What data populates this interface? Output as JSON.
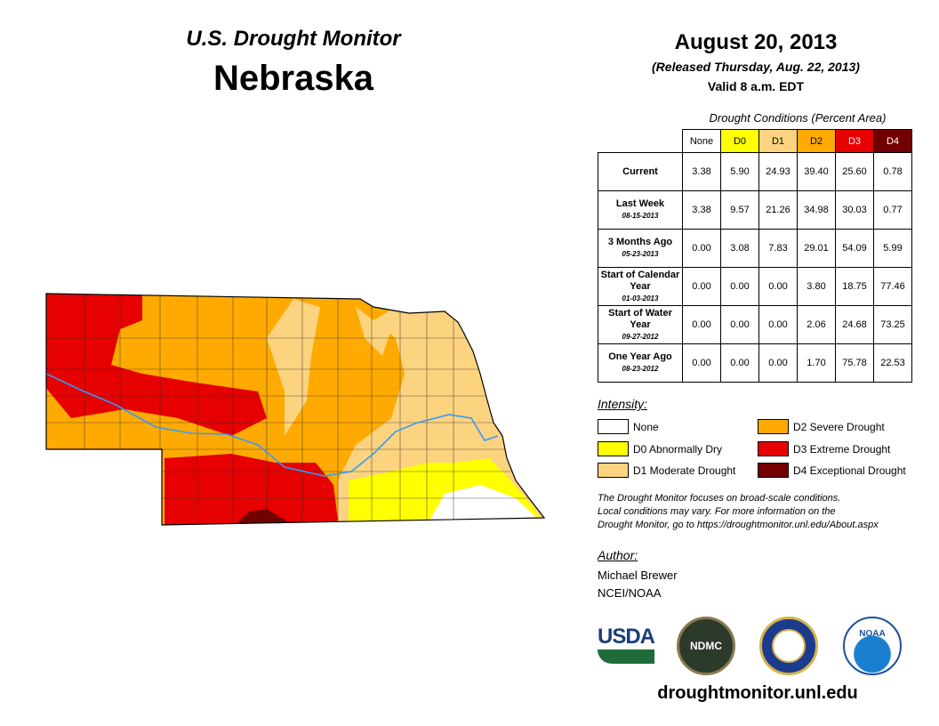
{
  "header": {
    "title": "U.S. Drought Monitor",
    "state": "Nebraska",
    "date": "August 20, 2013",
    "released": "(Released Thursday, Aug. 22, 2013)",
    "valid": "Valid 8 a.m. EDT"
  },
  "table": {
    "caption": "Drought Conditions (Percent Area)",
    "columns": [
      "None",
      "D0",
      "D1",
      "D2",
      "D3",
      "D4"
    ],
    "column_colors": [
      "#ffffff",
      "#ffff00",
      "#fcd37f",
      "#ffaa00",
      "#e60000",
      "#730000"
    ],
    "rows": [
      {
        "label": "Current",
        "date": "",
        "values": [
          "3.38",
          "5.90",
          "24.93",
          "39.40",
          "25.60",
          "0.78"
        ]
      },
      {
        "label": "Last Week",
        "date": "08-15-2013",
        "values": [
          "3.38",
          "9.57",
          "21.26",
          "34.98",
          "30.03",
          "0.77"
        ]
      },
      {
        "label": "3 Months Ago",
        "date": "05-23-2013",
        "values": [
          "0.00",
          "3.08",
          "7.83",
          "29.01",
          "54.09",
          "5.99"
        ]
      },
      {
        "label": "Start of Calendar Year",
        "date": "01-03-2013",
        "values": [
          "0.00",
          "0.00",
          "0.00",
          "3.80",
          "18.75",
          "77.46"
        ]
      },
      {
        "label": "Start of Water Year",
        "date": "09-27-2012",
        "values": [
          "0.00",
          "0.00",
          "0.00",
          "2.06",
          "24.68",
          "73.25"
        ]
      },
      {
        "label": "One Year Ago",
        "date": "08-23-2012",
        "values": [
          "0.00",
          "0.00",
          "0.00",
          "1.70",
          "75.78",
          "22.53"
        ]
      }
    ]
  },
  "legend": {
    "title": "Intensity:",
    "items": [
      {
        "label": "None",
        "color": "#ffffff"
      },
      {
        "label": "D0 Abnormally Dry",
        "color": "#ffff00"
      },
      {
        "label": "D1 Moderate Drought",
        "color": "#fcd37f"
      },
      {
        "label": "D2 Severe Drought",
        "color": "#ffaa00"
      },
      {
        "label": "D3 Extreme Drought",
        "color": "#e60000"
      },
      {
        "label": "D4 Exceptional Drought",
        "color": "#730000"
      }
    ]
  },
  "note": {
    "line1": "The Drought Monitor focuses on broad-scale conditions.",
    "line2": "Local conditions may vary. For more information on the",
    "line3": "Drought Monitor, go to https://droughtmonitor.unl.edu/About.aspx"
  },
  "author": {
    "label": "Author:",
    "name": "Michael Brewer",
    "org": "NCEI/NOAA"
  },
  "logos": {
    "usda": "USDA",
    "ndmc": "NDMC",
    "noaa": "NOAA"
  },
  "footer": {
    "url": "droughtmonitor.unl.edu"
  }
}
